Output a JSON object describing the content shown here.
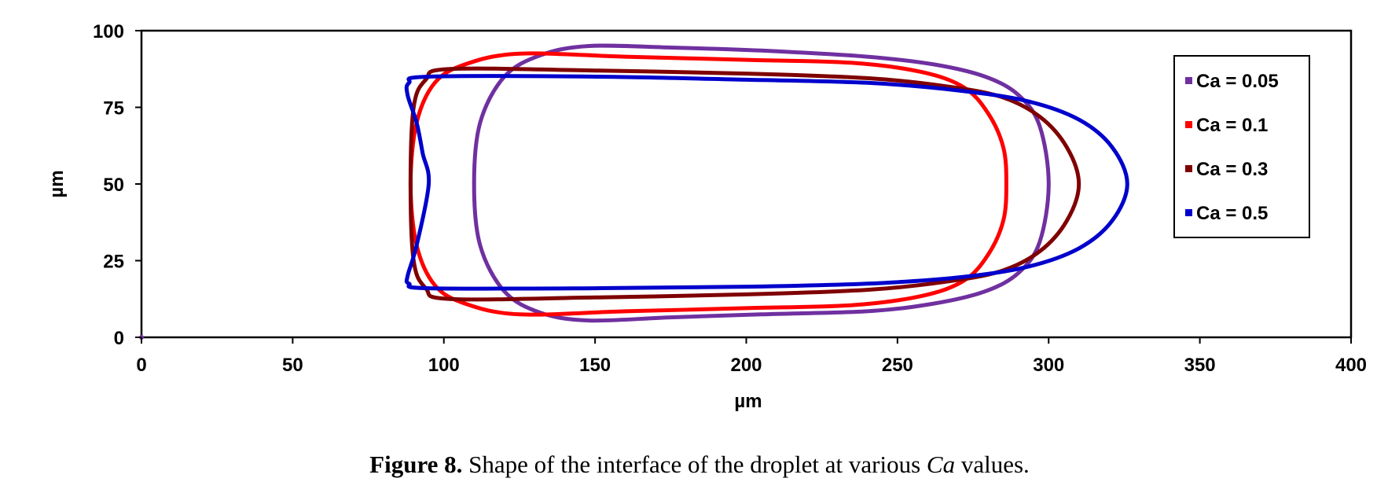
{
  "chart_data": {
    "type": "line",
    "title": "",
    "xlabel": "µm",
    "ylabel": "µm",
    "xlim": [
      0,
      400
    ],
    "ylim": [
      0,
      100
    ],
    "xticks": [
      "0",
      "50",
      "100",
      "150",
      "200",
      "250",
      "300",
      "350",
      "400"
    ],
    "yticks": [
      "0",
      "25",
      "50",
      "75",
      "100"
    ],
    "grid": false,
    "legend_position": "top-right",
    "series": [
      {
        "name": "Ca = 0.05",
        "color": "#7030A0",
        "x": [
          148,
          175,
          205,
          240,
          262,
          279,
          290,
          297,
          300,
          297,
          290,
          279,
          262,
          240,
          205,
          175,
          148,
          132,
          120,
          112,
          110,
          112,
          120,
          132,
          148
        ],
        "y": [
          95,
          94.5,
          93.5,
          91.5,
          89,
          85,
          79,
          69,
          50,
          31,
          21,
          15,
          11,
          8.5,
          7.5,
          6.5,
          5.5,
          8,
          15,
          30,
          50,
          70,
          85,
          92,
          95
        ]
      },
      {
        "name": "Ca = 0.1",
        "color": "#FF0000",
        "x": [
          125,
          160,
          200,
          235,
          258,
          272,
          280,
          285,
          286,
          285,
          280,
          272,
          258,
          235,
          200,
          160,
          125,
          107,
          97,
          91,
          89,
          91,
          97,
          107,
          125
        ],
        "y": [
          92.5,
          91.5,
          90.5,
          89.5,
          86.5,
          81.5,
          73,
          62,
          50,
          38,
          27,
          18.5,
          13.5,
          10.5,
          9.5,
          8.5,
          7.5,
          11,
          17,
          30,
          50,
          70,
          83,
          89,
          92.5
        ]
      },
      {
        "name": "Ca = 0.3",
        "color": "#7F0000",
        "x": [
          102,
          150,
          200,
          240,
          265,
          284,
          297,
          306,
          310,
          306,
          297,
          284,
          265,
          240,
          200,
          150,
          102,
          94,
          90,
          89,
          90,
          94,
          102
        ],
        "y": [
          87.5,
          87,
          86,
          84.5,
          82,
          78.5,
          72,
          62,
          50,
          38,
          28,
          21.5,
          18,
          15.5,
          14,
          13,
          12.5,
          16,
          25,
          50,
          75,
          84,
          87.5
        ]
      },
      {
        "name": "Ca = 0.5",
        "color": "#0000CC",
        "x": [
          95,
          150,
          200,
          240,
          270,
          293,
          310,
          321,
          326,
          321,
          310,
          293,
          270,
          240,
          200,
          150,
          95,
          88.5,
          88,
          91,
          95,
          93,
          91,
          88,
          88.5,
          95
        ],
        "y": [
          85,
          85,
          84,
          83,
          80.5,
          77,
          71,
          62,
          50,
          38,
          29,
          23,
          19.5,
          17.5,
          16.5,
          16,
          16,
          17.5,
          20,
          30,
          50,
          60,
          70,
          79,
          83,
          85
        ]
      }
    ]
  },
  "caption": {
    "label": "Figure 8.",
    "text_before": " Shape of the interface of the droplet at various ",
    "italic": "Ca",
    "text_after": " values."
  }
}
